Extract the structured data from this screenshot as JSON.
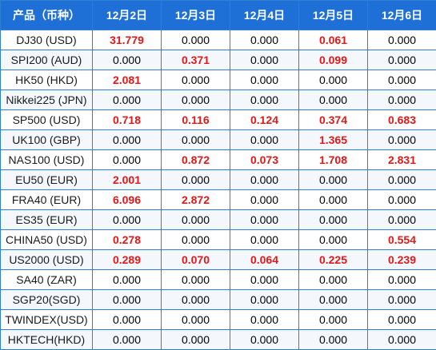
{
  "header": {
    "product": "产品（币种）",
    "dates": [
      "12月2日",
      "12月3日",
      "12月4日",
      "12月5日",
      "12月6日"
    ]
  },
  "colors": {
    "header_bg": "#1e6fd6",
    "header_text": "#ffffff",
    "border": "#2f7fd4",
    "highlight_value": "#e31818"
  },
  "rows": [
    {
      "product": "DJ30 (USD)",
      "values": [
        "31.779",
        "0.000",
        "0.000",
        "0.061",
        "0.000"
      ]
    },
    {
      "product": "SPI200 (AUD)",
      "values": [
        "0.000",
        "0.371",
        "0.000",
        "0.099",
        "0.000"
      ]
    },
    {
      "product": "HK50 (HKD)",
      "values": [
        "2.081",
        "0.000",
        "0.000",
        "0.000",
        "0.000"
      ]
    },
    {
      "product": "Nikkei225 (JPN)",
      "values": [
        "0.000",
        "0.000",
        "0.000",
        "0.000",
        "0.000"
      ]
    },
    {
      "product": "SP500 (USD)",
      "values": [
        "0.718",
        "0.116",
        "0.124",
        "0.374",
        "0.683"
      ]
    },
    {
      "product": "UK100 (GBP)",
      "values": [
        "0.000",
        "0.000",
        "0.000",
        "1.365",
        "0.000"
      ]
    },
    {
      "product": "NAS100 (USD)",
      "values": [
        "0.000",
        "0.872",
        "0.073",
        "1.708",
        "2.831"
      ]
    },
    {
      "product": "EU50 (EUR)",
      "values": [
        "2.001",
        "0.000",
        "0.000",
        "0.000",
        "0.000"
      ]
    },
    {
      "product": "FRA40 (EUR)",
      "values": [
        "6.096",
        "2.872",
        "0.000",
        "0.000",
        "0.000"
      ]
    },
    {
      "product": "ES35 (EUR)",
      "values": [
        "0.000",
        "0.000",
        "0.000",
        "0.000",
        "0.000"
      ]
    },
    {
      "product": "CHINA50 (USD)",
      "values": [
        "0.278",
        "0.000",
        "0.000",
        "0.000",
        "0.554"
      ]
    },
    {
      "product": "US2000 (USD)",
      "values": [
        "0.289",
        "0.070",
        "0.064",
        "0.225",
        "0.239"
      ]
    },
    {
      "product": "SA40 (ZAR)",
      "values": [
        "0.000",
        "0.000",
        "0.000",
        "0.000",
        "0.000"
      ]
    },
    {
      "product": "SGP20(SGD)",
      "values": [
        "0.000",
        "0.000",
        "0.000",
        "0.000",
        "0.000"
      ]
    },
    {
      "product": "TWINDEX(USD)",
      "values": [
        "0.000",
        "0.000",
        "0.000",
        "0.000",
        "0.000"
      ]
    },
    {
      "product": "HKTECH(HKD)",
      "values": [
        "0.000",
        "0.000",
        "0.000",
        "0.000",
        "0.000"
      ]
    }
  ]
}
